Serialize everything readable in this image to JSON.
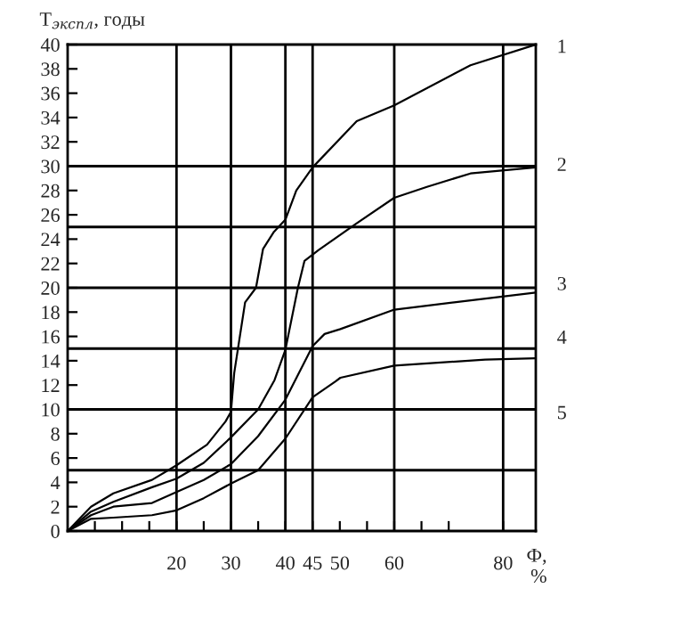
{
  "chart_data": {
    "type": "line",
    "ylabel": "Т$_{экспл}$, годы",
    "xlabel": "Ф,\n%",
    "xlim": [
      0,
      86
    ],
    "ylim": [
      0,
      40
    ],
    "xticks": [
      {
        "value": 5,
        "label": null
      },
      {
        "value": 10,
        "label": null
      },
      {
        "value": 15,
        "label": null
      },
      20,
      {
        "value": 25,
        "label": null
      },
      30,
      {
        "value": 35,
        "label": null
      },
      40,
      45,
      50,
      {
        "value": 55,
        "label": null
      },
      60,
      {
        "value": 65,
        "label": null
      },
      {
        "value": 70,
        "label": null
      },
      80
    ],
    "yticks": [
      0,
      2,
      4,
      6,
      8,
      10,
      12,
      14,
      16,
      18,
      20,
      22,
      24,
      26,
      28,
      30,
      32,
      34,
      36,
      38,
      40
    ],
    "grid": false,
    "legend": false,
    "marker": "none",
    "line_style": "solid",
    "series": [
      {
        "color": "#000000",
        "x": [
          0,
          4.3,
          8.4,
          15.5,
          20,
          25.6,
          29,
          30,
          30.6,
          32.6,
          34.6,
          35.9,
          37.9,
          40,
          42,
          45,
          53.1,
          60,
          74,
          86
        ],
        "values": [
          0,
          2,
          3.1,
          4.2,
          5.4,
          7.1,
          9,
          9.8,
          13,
          18.8,
          20,
          23.2,
          24.6,
          25.6,
          28,
          29.9,
          33.7,
          35,
          38.3,
          40
        ]
      },
      {
        "color": "#000000",
        "x": [
          0,
          4.3,
          8.4,
          15.5,
          20,
          25,
          30,
          35,
          38,
          40,
          42.3,
          43.5,
          46.1,
          53.1,
          60,
          66,
          74,
          86
        ],
        "values": [
          0,
          1.6,
          2.4,
          3.6,
          4.3,
          5.6,
          7.7,
          10,
          12.4,
          14.9,
          20,
          22.2,
          23.1,
          25.3,
          27.4,
          28.3,
          29.4,
          29.9
        ]
      },
      {
        "color": "#000000",
        "x": [
          0,
          4.3,
          8.4,
          15.5,
          20,
          25,
          30,
          35,
          40,
          45,
          47.2,
          50.1,
          60,
          71,
          86
        ],
        "values": [
          0,
          1.3,
          2,
          2.3,
          3.2,
          4.2,
          5.5,
          7.8,
          10.8,
          15.2,
          16.2,
          16.6,
          18.2,
          18.8,
          19.6
        ]
      },
      {
        "color": "#000000",
        "x": [
          0,
          4.3,
          8.4,
          15.5,
          20,
          25,
          30,
          35,
          40,
          45,
          49.2,
          50.1,
          60,
          76.7,
          86
        ],
        "values": [
          0,
          1,
          1.1,
          1.3,
          1.7,
          2.7,
          3.9,
          5,
          7.6,
          11,
          12.3,
          12.6,
          13.6,
          14.1,
          14.2
        ]
      }
    ],
    "ref_lines": [
      {
        "axis": "x",
        "value": 20,
        "color": "#000000"
      },
      {
        "axis": "x",
        "value": 30,
        "color": "#000000"
      },
      {
        "axis": "x",
        "value": 40,
        "color": "#000000"
      },
      {
        "axis": "x",
        "value": 45,
        "color": "#000000"
      },
      {
        "axis": "x",
        "value": 60,
        "color": "#000000"
      },
      {
        "axis": "x",
        "value": 80,
        "color": "#000000"
      },
      {
        "axis": "y",
        "value": 5,
        "color": "#000000"
      },
      {
        "axis": "y",
        "value": 10,
        "color": "#000000"
      },
      {
        "axis": "y",
        "value": 15,
        "color": "#000000"
      },
      {
        "axis": "y",
        "value": 20,
        "color": "#000000"
      },
      {
        "axis": "y",
        "value": 25,
        "color": "#000000"
      },
      {
        "axis": "y",
        "value": 30,
        "color": "#000000"
      }
    ],
    "annotations": [
      "1",
      "2",
      "3",
      "4",
      "5"
    ]
  }
}
